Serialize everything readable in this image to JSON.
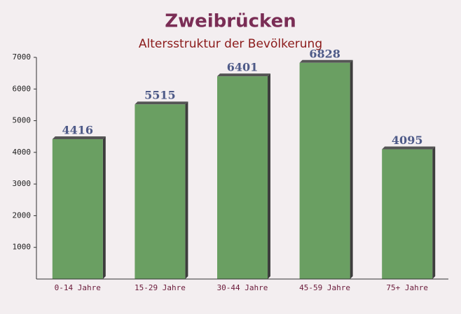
{
  "chart_data": {
    "type": "bar",
    "title": "Zweibrücken",
    "subtitle": "Altersstruktur der Bevölkerung",
    "categories": [
      "0-14 Jahre",
      "15-29 Jahre",
      "30-44 Jahre",
      "45-59 Jahre",
      "75+ Jahre"
    ],
    "values": [
      4416,
      5515,
      6401,
      6828,
      4095
    ],
    "color": "#6a9f62",
    "ylim": [
      0,
      7000
    ],
    "yticks": [
      1000,
      2000,
      3000,
      4000,
      5000,
      6000,
      7000
    ]
  }
}
